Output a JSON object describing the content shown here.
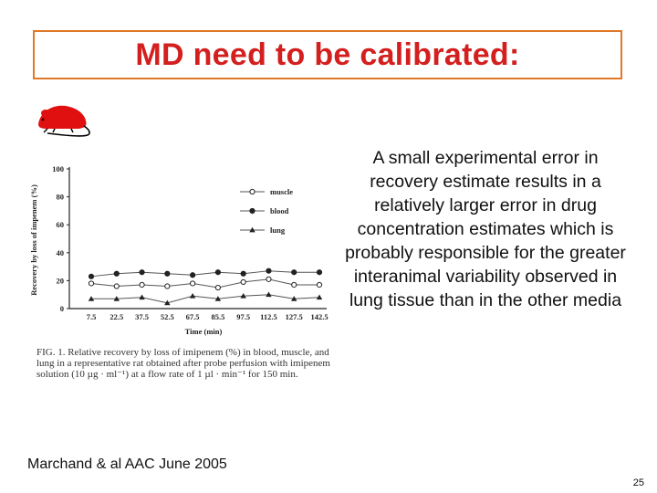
{
  "slide": {
    "title": "MD need to be calibrated:",
    "body": "A small experimental error in recovery estimate results in a relatively larger error in drug concentration estimates which is probably responsible for the greater interanimal variability observed in lung tissue than in the other media",
    "citation": "Marchand & al AAC June 2005",
    "page_number": "25",
    "title_color": "#d41f1f",
    "frame_color": "#e07828",
    "rat_icon": "rat-icon",
    "rat_color": "#e01010"
  },
  "figure": {
    "caption": "FIG. 1. Relative recovery by loss of imipenem (%) in blood, muscle, and lung in a representative rat obtained after probe perfusion with imipenem solution (10 µg · ml⁻¹) at a flow rate of 1 µl · min⁻¹ for 150 min."
  },
  "chart_data": {
    "type": "line",
    "title": "",
    "xlabel": "Time (min)",
    "ylabel": "Recovery by loss of impenem (%)",
    "ylim": [
      0,
      100
    ],
    "yticks": [
      "0",
      "20",
      "40",
      "60",
      "80",
      "100"
    ],
    "categories": [
      "7.5",
      "22.5",
      "37.5",
      "52.5",
      "67.5",
      "85.5",
      "97.5",
      "112.5",
      "127.5",
      "142.5"
    ],
    "legend_position": "top-right",
    "series": [
      {
        "name": "muscle",
        "marker": "open-circle",
        "values": [
          18,
          16,
          17,
          16,
          18,
          15,
          19,
          21,
          17,
          17
        ]
      },
      {
        "name": "blood",
        "marker": "filled-circle",
        "values": [
          23,
          25,
          26,
          25,
          24,
          26,
          25,
          27,
          26,
          26
        ]
      },
      {
        "name": "lung",
        "marker": "triangle",
        "values": [
          7,
          7,
          8,
          4,
          9,
          7,
          9,
          10,
          7,
          8
        ]
      }
    ]
  }
}
